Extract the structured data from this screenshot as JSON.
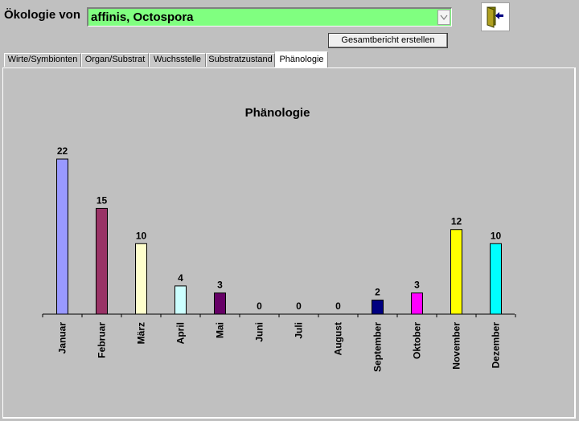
{
  "header": {
    "title_label": "Ökologie von",
    "species_value": "affinis, Octospora",
    "report_button": "Gesamtbericht erstellen",
    "exit_icon": "exit-door-icon",
    "dropdown_icon": "chevron-down-icon"
  },
  "tabs": [
    {
      "label": "Wirte/Symbionten",
      "active": false
    },
    {
      "label": "Organ/Substrat",
      "active": false
    },
    {
      "label": "Wuchsstelle",
      "active": false
    },
    {
      "label": "Substratzustand",
      "active": false
    },
    {
      "label": "Phänologie",
      "active": true
    }
  ],
  "colors": {
    "species_field": "#80ff80",
    "window_bg": "#c0c0c0"
  },
  "chart_data": {
    "type": "bar",
    "title": "Phänologie",
    "categories": [
      "Januar",
      "Februar",
      "März",
      "April",
      "Mai",
      "Juni",
      "Juli",
      "August",
      "September",
      "Oktober",
      "November",
      "Dezember"
    ],
    "values": [
      22,
      15,
      10,
      4,
      3,
      0,
      0,
      0,
      2,
      3,
      12,
      10
    ],
    "colors": [
      "#9999ff",
      "#993366",
      "#ffffcc",
      "#ccffff",
      "#660066",
      "#ff8080",
      "#0066cc",
      "#ccccff",
      "#000080",
      "#ff00ff",
      "#ffff00",
      "#00ffff"
    ],
    "data_labels": true,
    "grid": false,
    "legend": "none"
  }
}
